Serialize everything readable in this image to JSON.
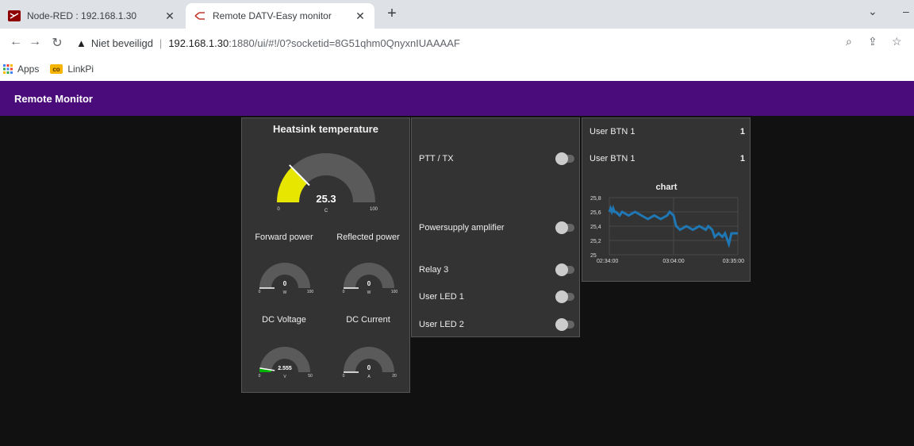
{
  "browser": {
    "tabs": [
      {
        "title": "Node-RED : 192.168.1.30",
        "active": false
      },
      {
        "title": "Remote DATV-Easy monitor",
        "active": true
      }
    ],
    "security_label": "Niet beveiligd",
    "url_host": "192.168.1.30",
    "url_rest": ":1880/ui/#!/0?socketid=8G51qhm0QnyxnIUAAAAF",
    "bookmarks": [
      {
        "label": "Apps",
        "icon": "apps-grid-icon"
      },
      {
        "label": "LinkPi",
        "icon": "linkpi-icon"
      }
    ]
  },
  "app": {
    "title": "Remote Monitor",
    "toolbar_color": "#4a0c7a"
  },
  "gauges": {
    "heatsink": {
      "title": "Heatsink temperature",
      "value": 25.3,
      "value_label": "25.3",
      "min": "0",
      "max": "100",
      "unit": "C",
      "color": "#e6e600"
    },
    "forward": {
      "title": "Forward power",
      "value": 0,
      "value_label": "0",
      "min": "0",
      "max": "100",
      "unit": "W"
    },
    "reflected": {
      "title": "Reflected power",
      "value": 0,
      "value_label": "0",
      "min": "0",
      "max": "100",
      "unit": "W"
    },
    "voltage": {
      "title": "DC Voltage",
      "value": 2.555,
      "value_label": "2.555",
      "min": "0",
      "max": "50",
      "unit": "V",
      "color": "#00b500"
    },
    "current": {
      "title": "DC Current",
      "value": 0,
      "value_label": "0",
      "min": "0",
      "max": "20",
      "unit": "A"
    }
  },
  "switches": [
    {
      "label": "PTT / TX",
      "on": false
    },
    {
      "label": "Powersupply amplifier",
      "on": false
    },
    {
      "label": "Relay 3",
      "on": false
    },
    {
      "label": "User LED 1",
      "on": false
    },
    {
      "label": "User LED 2",
      "on": false
    }
  ],
  "texts": [
    {
      "label": "User BTN 1",
      "value": "1"
    },
    {
      "label": "User BTN 1",
      "value": "1"
    }
  ],
  "chart_data": {
    "type": "line",
    "title": "chart",
    "ylim": [
      25,
      25.8
    ],
    "yticks": [
      "25",
      "25,2",
      "25,4",
      "25,6",
      "25,8"
    ],
    "xticks": [
      "02:34:00",
      "03:04:00",
      "03:35:00"
    ],
    "color": "#1f77b4",
    "series": [
      {
        "x": [
          0.0,
          0.01,
          0.02,
          0.03,
          0.04,
          0.05,
          0.08,
          0.1,
          0.15,
          0.2,
          0.25,
          0.3,
          0.35,
          0.4,
          0.45,
          0.47,
          0.5,
          0.52,
          0.55,
          0.6,
          0.65,
          0.7,
          0.75,
          0.77,
          0.8,
          0.82,
          0.85,
          0.88,
          0.9,
          0.93,
          0.95,
          1.0
        ],
        "values": [
          25.6,
          25.65,
          25.6,
          25.65,
          25.6,
          25.6,
          25.55,
          25.6,
          25.55,
          25.6,
          25.55,
          25.5,
          25.55,
          25.5,
          25.55,
          25.6,
          25.55,
          25.4,
          25.35,
          25.4,
          25.35,
          25.4,
          25.35,
          25.4,
          25.35,
          25.25,
          25.3,
          25.25,
          25.3,
          25.15,
          25.3,
          25.3
        ]
      }
    ]
  }
}
